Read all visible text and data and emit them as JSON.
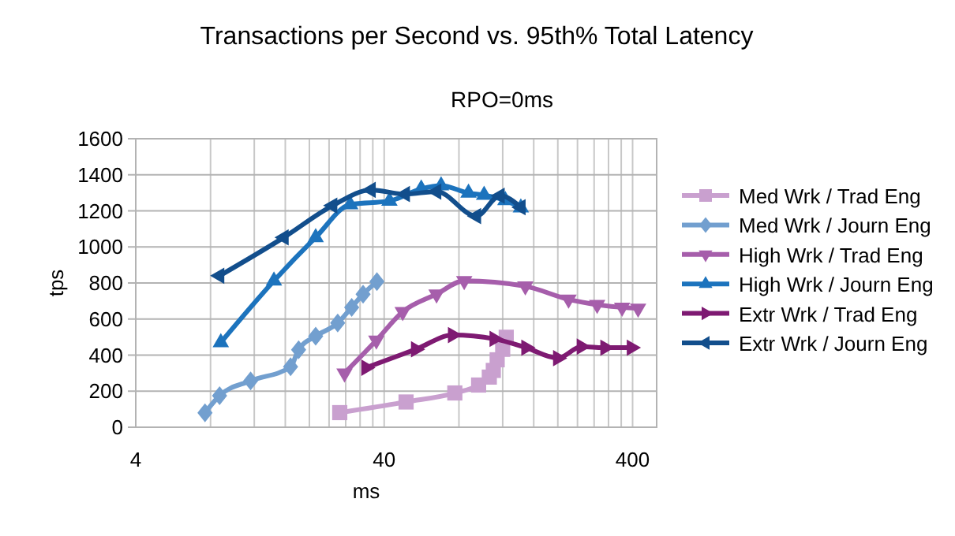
{
  "chart_data": {
    "type": "line",
    "title": "Transactions per Second vs. 95th% Total Latency",
    "subtitle": "RPO=0ms",
    "xlabel": "ms",
    "ylabel": "tps",
    "log": "x",
    "xlim": [
      4,
      500
    ],
    "xticks": [
      4,
      {
        "value": 8,
        "label": null
      },
      {
        "value": 12,
        "label": null
      },
      {
        "value": 16,
        "label": null
      },
      {
        "value": 20,
        "label": null
      },
      {
        "value": 24,
        "label": null
      },
      {
        "value": 28,
        "label": null
      },
      {
        "value": 32,
        "label": null
      },
      {
        "value": 36,
        "label": null
      },
      40,
      {
        "value": 80,
        "label": null
      },
      {
        "value": 120,
        "label": null
      },
      {
        "value": 160,
        "label": null
      },
      {
        "value": 200,
        "label": null
      },
      {
        "value": 240,
        "label": null
      },
      {
        "value": 280,
        "label": null
      },
      {
        "value": 320,
        "label": null
      },
      {
        "value": 360,
        "label": null
      },
      400
    ],
    "ylim": [
      0,
      1600
    ],
    "yticks": [
      0,
      200,
      400,
      600,
      800,
      1000,
      1200,
      1400,
      1600
    ],
    "grid": true,
    "legend": "right",
    "line_style": "solid",
    "series": [
      {
        "name": "Med Wrk / Trad Eng",
        "color": "#c9a0cf",
        "marker": "square",
        "x": [
          26.5,
          49,
          77,
          96,
          106,
          110,
          114,
          120,
          124
        ],
        "values": [
          81,
          140,
          190,
          234,
          278,
          315,
          374,
          432,
          499
        ]
      },
      {
        "name": "Med Wrk / Journ Eng",
        "color": "#729fcf",
        "marker": "diamond",
        "x": [
          7.6,
          8.7,
          11.6,
          16.8,
          18.1,
          21.2,
          26,
          29.6,
          32.9,
          37.4
        ],
        "values": [
          80,
          175,
          257,
          335,
          430,
          505,
          578,
          665,
          738,
          808
        ]
      },
      {
        "name": "High Wrk / Trad Eng",
        "color": "#a65eab",
        "marker": "triangle-down",
        "x": [
          27.7,
          37.2,
          47.5,
          65,
          84,
          148,
          221,
          288,
          363,
          421
        ],
        "values": [
          300,
          482,
          640,
          738,
          812,
          782,
          709,
          680,
          665,
          659
        ]
      },
      {
        "name": "High Wrk / Journ Eng",
        "color": "#1c73bd",
        "marker": "triangle",
        "x": [
          8.8,
          14.4,
          21.2,
          29.2,
          42,
          56.4,
          67.8,
          87.4,
          101,
          123,
          142
        ],
        "values": [
          470,
          812,
          1053,
          1235,
          1255,
          1322,
          1340,
          1299,
          1287,
          1258,
          1217
        ]
      },
      {
        "name": "Extr Wrk / Trad Eng",
        "color": "#7e1a72",
        "marker": "triangle-right",
        "x": [
          33.8,
          53.6,
          75.5,
          111,
          149,
          200,
          249,
          310,
          396
        ],
        "values": [
          330,
          432,
          511,
          490,
          441,
          383,
          447,
          441,
          441
        ]
      },
      {
        "name": "Extr Wrk / Journ Eng",
        "color": "#124e8c",
        "marker": "triangle-left",
        "x": [
          8.7,
          15.8,
          24.8,
          35.4,
          48.6,
          65,
          94,
          117,
          142
        ],
        "values": [
          840,
          1053,
          1229,
          1316,
          1293,
          1307,
          1171,
          1284,
          1220
        ]
      }
    ]
  }
}
